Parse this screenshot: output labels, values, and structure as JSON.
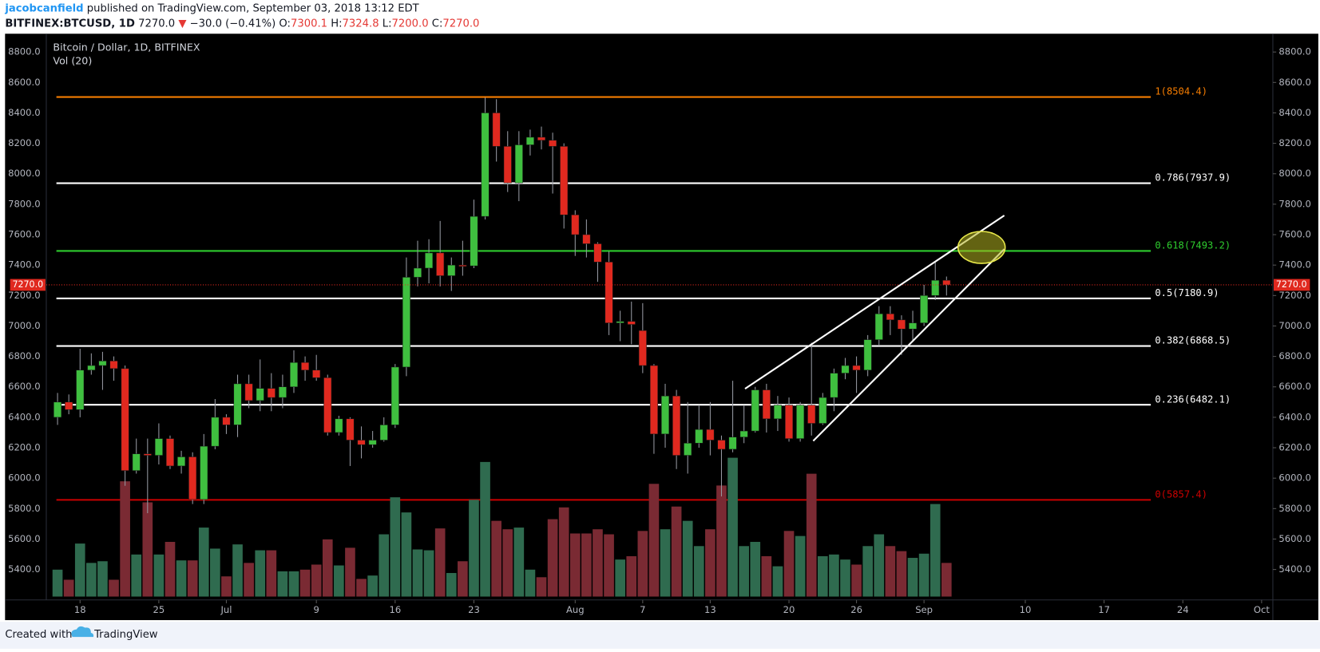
{
  "header": {
    "author": "jacobcanfield",
    "published": "published on TradingView.com, September 03, 2018 13:12 EDT",
    "symbol": "BITFINEX:BTCUSD, 1D",
    "price": "7270.0",
    "arrow": "▼",
    "change": "−30.0 (−0.41%)",
    "ohlc": [
      {
        "label": "O:",
        "value": "7300.1"
      },
      {
        "label": "H:",
        "value": "7324.8"
      },
      {
        "label": "L:",
        "value": "7200.0"
      },
      {
        "label": "C:",
        "value": "7270.0"
      }
    ]
  },
  "footer": {
    "created": "Created with",
    "brand": "TradingView"
  },
  "chart_data": {
    "type": "candlestick",
    "title": "Bitcoin / Dollar, 1D, BITFINEX",
    "x": [
      "2018-06-16",
      "2018-06-17",
      "2018-06-18",
      "2018-06-19",
      "2018-06-20",
      "2018-06-21",
      "2018-06-22",
      "2018-06-23",
      "2018-06-24",
      "2018-06-25",
      "2018-06-26",
      "2018-06-27",
      "2018-06-28",
      "2018-06-29",
      "2018-06-30",
      "2018-07-01",
      "2018-07-02",
      "2018-07-03",
      "2018-07-04",
      "2018-07-05",
      "2018-07-06",
      "2018-07-07",
      "2018-07-08",
      "2018-07-09",
      "2018-07-10",
      "2018-07-11",
      "2018-07-12",
      "2018-07-13",
      "2018-07-14",
      "2018-07-15",
      "2018-07-16",
      "2018-07-17",
      "2018-07-18",
      "2018-07-19",
      "2018-07-20",
      "2018-07-21",
      "2018-07-22",
      "2018-07-23",
      "2018-07-24",
      "2018-07-25",
      "2018-07-26",
      "2018-07-27",
      "2018-07-28",
      "2018-07-29",
      "2018-07-30",
      "2018-07-31",
      "2018-08-01",
      "2018-08-02",
      "2018-08-03",
      "2018-08-04",
      "2018-08-05",
      "2018-08-06",
      "2018-08-07",
      "2018-08-08",
      "2018-08-09",
      "2018-08-10",
      "2018-08-11",
      "2018-08-12",
      "2018-08-13",
      "2018-08-14",
      "2018-08-15",
      "2018-08-16",
      "2018-08-17",
      "2018-08-18",
      "2018-08-19",
      "2018-08-20",
      "2018-08-21",
      "2018-08-22",
      "2018-08-23",
      "2018-08-24",
      "2018-08-25",
      "2018-08-26",
      "2018-08-27",
      "2018-08-28",
      "2018-08-29",
      "2018-08-30",
      "2018-08-31",
      "2018-09-01",
      "2018-09-02",
      "2018-09-03"
    ],
    "open": [
      6400,
      6500,
      6450,
      6710,
      6740,
      6770,
      6720,
      6050,
      6160,
      6150,
      6260,
      6080,
      6140,
      5860,
      6210,
      6400,
      6350,
      6620,
      6510,
      6590,
      6530,
      6600,
      6760,
      6710,
      6660,
      6300,
      6390,
      6250,
      6220,
      6250,
      6350,
      6730,
      7320,
      7380,
      7480,
      7330,
      7400,
      7395,
      7720,
      8400,
      8180,
      7940,
      8190,
      8240,
      8220,
      8180,
      7730,
      7600,
      7540,
      7420,
      7020,
      7030,
      6970,
      6740,
      6290,
      6540,
      6150,
      6230,
      6320,
      6250,
      6190,
      6270,
      6310,
      6580,
      6390,
      6480,
      6260,
      6480,
      6360,
      6530,
      6690,
      6740,
      6710,
      6910,
      7080,
      7040,
      6980,
      7020,
      7200,
      7300.1
    ],
    "high": [
      6560,
      6550,
      6850,
      6820,
      6830,
      6800,
      6740,
      6260,
      6260,
      6360,
      6280,
      6180,
      6170,
      6290,
      6520,
      6420,
      6680,
      6680,
      6780,
      6690,
      6680,
      6840,
      6800,
      6810,
      6680,
      6410,
      6400,
      6340,
      6310,
      6400,
      6750,
      7450,
      7560,
      7570,
      7690,
      7450,
      7560,
      7830,
      8500,
      8490,
      8280,
      8280,
      8290,
      8310,
      8270,
      8200,
      7760,
      7700,
      7550,
      7490,
      7100,
      7160,
      7150,
      6750,
      6620,
      6580,
      6500,
      6480,
      6500,
      6280,
      6640,
      6480,
      6600,
      6620,
      6540,
      6530,
      6500,
      6890,
      6560,
      6720,
      6790,
      6800,
      6940,
      7130,
      7130,
      7070,
      7100,
      7270,
      7420,
      7324.8
    ],
    "low": [
      6350,
      6420,
      6400,
      6680,
      6580,
      6640,
      5950,
      6030,
      5770,
      6090,
      6060,
      6030,
      5830,
      5830,
      6190,
      6290,
      6270,
      6460,
      6440,
      6440,
      6460,
      6560,
      6640,
      6640,
      6280,
      6280,
      6080,
      6130,
      6200,
      6240,
      6330,
      6670,
      7260,
      7280,
      7260,
      7230,
      7330,
      7380,
      7700,
      8080,
      7880,
      7820,
      8120,
      8160,
      7870,
      7640,
      7460,
      7450,
      7290,
      6940,
      6900,
      6880,
      6690,
      6160,
      6200,
      6060,
      6030,
      6200,
      6150,
      5880,
      6170,
      6230,
      6300,
      6300,
      6310,
      6240,
      6240,
      6280,
      6350,
      6440,
      6650,
      6560,
      6670,
      6870,
      6940,
      6810,
      6900,
      7000,
      7170,
      7200
    ],
    "close": [
      6500,
      6450,
      6710,
      6740,
      6770,
      6720,
      6050,
      6160,
      6150,
      6260,
      6080,
      6140,
      5860,
      6210,
      6400,
      6350,
      6620,
      6510,
      6590,
      6530,
      6600,
      6760,
      6710,
      6660,
      6300,
      6390,
      6250,
      6220,
      6250,
      6350,
      6730,
      7320,
      7380,
      7480,
      7330,
      7400,
      7395,
      7720,
      8400,
      8180,
      7940,
      8190,
      8240,
      8220,
      8180,
      7730,
      7600,
      7540,
      7420,
      7020,
      7030,
      7010,
      6740,
      6290,
      6540,
      6150,
      6230,
      6320,
      6250,
      6190,
      6270,
      6310,
      6580,
      6390,
      6480,
      6260,
      6480,
      6360,
      6530,
      6690,
      6740,
      6710,
      6910,
      7080,
      7040,
      6980,
      7020,
      7200,
      7300,
      7270
    ],
    "volume": {
      "name": "Vol (20)",
      "values": [
        32,
        20,
        63,
        40,
        42,
        20,
        137,
        50,
        112,
        50,
        65,
        43,
        43,
        82,
        57,
        24,
        62,
        40,
        55,
        55,
        30,
        30,
        32,
        38,
        68,
        37,
        58,
        21,
        25,
        74,
        118,
        100,
        56,
        55,
        81,
        28,
        42,
        115,
        160,
        90,
        80,
        82,
        32,
        23,
        92,
        106,
        75,
        75,
        80,
        74,
        44,
        48,
        78,
        134,
        80,
        107,
        90,
        60,
        80,
        132,
        165,
        60,
        65,
        48,
        36,
        78,
        72,
        146,
        48,
        50,
        44,
        38,
        60,
        74,
        60,
        54,
        46,
        51,
        110,
        40
      ]
    },
    "up_color": "#3fbf3f",
    "down_color": "#e0291f",
    "volume_up_color": "#2f6b4f",
    "volume_down_color": "#7a2a33",
    "last": {
      "value": 7270,
      "label": "7270.0",
      "color": "#e0291f"
    },
    "levels": [
      {
        "label": "1(8504.4)",
        "value": 8504.4,
        "color": "#f57c00"
      },
      {
        "label": "0.786(7937.9)",
        "value": 7937.9,
        "color": "#ffffff"
      },
      {
        "label": "0.618(7493.2)",
        "value": 7493.2,
        "color": "#2ecc2e"
      },
      {
        "label": "0.5(7180.9)",
        "value": 7180.9,
        "color": "#ffffff"
      },
      {
        "label": "0.382(6868.5)",
        "value": 6868.5,
        "color": "#ffffff"
      },
      {
        "label": "0.236(6482.1)",
        "value": 6482.1,
        "color": "#ffffff"
      },
      {
        "label": "0(5857.4)",
        "value": 5857.4,
        "color": "#cc0000"
      }
    ],
    "xlim": [
      "2018-06-15",
      "2018-10-02"
    ],
    "xticks": [
      {
        "value": "2018-06-18",
        "label": "18"
      },
      {
        "value": "2018-06-25",
        "label": "25"
      },
      {
        "value": "2018-07-01",
        "label": "Jul"
      },
      {
        "value": "2018-07-09",
        "label": "9"
      },
      {
        "value": "2018-07-16",
        "label": "16"
      },
      {
        "value": "2018-07-23",
        "label": "23"
      },
      {
        "value": "2018-08-01",
        "label": "Aug"
      },
      {
        "value": "2018-08-07",
        "label": "7"
      },
      {
        "value": "2018-08-13",
        "label": "13"
      },
      {
        "value": "2018-08-20",
        "label": "20"
      },
      {
        "value": "2018-08-26",
        "label": "26"
      },
      {
        "value": "2018-09-01",
        "label": "Sep"
      },
      {
        "value": "2018-09-10",
        "label": "10"
      },
      {
        "value": "2018-09-17",
        "label": "17"
      },
      {
        "value": "2018-09-24",
        "label": "24"
      },
      {
        "value": "2018-10-01",
        "label": "Oct"
      }
    ],
    "ylim": [
      5200,
      8920
    ],
    "yticks": [
      {
        "value": 5400,
        "label": "5400.0"
      },
      {
        "value": 5600,
        "label": "5600.0"
      },
      {
        "value": 5800,
        "label": "5800.0"
      },
      {
        "value": 6000,
        "label": "6000.0"
      },
      {
        "value": 6200,
        "label": "6200.0"
      },
      {
        "value": 6400,
        "label": "6400.0"
      },
      {
        "value": 6600,
        "label": "6600.0"
      },
      {
        "value": 6800,
        "label": "6800.0"
      },
      {
        "value": 7000,
        "label": "7000.0"
      },
      {
        "value": 7200,
        "label": "7200.0"
      },
      {
        "value": 7400,
        "label": "7400.0"
      },
      {
        "value": 7600,
        "label": "7600.0"
      },
      {
        "value": 7800,
        "label": "7800.0"
      },
      {
        "value": 8000,
        "label": "8000.0"
      },
      {
        "value": 8200,
        "label": "8200.0"
      },
      {
        "value": 8400,
        "label": "8400.0"
      },
      {
        "value": 8600,
        "label": "8600.0"
      },
      {
        "value": 8800,
        "label": "8800.0"
      }
    ]
  }
}
